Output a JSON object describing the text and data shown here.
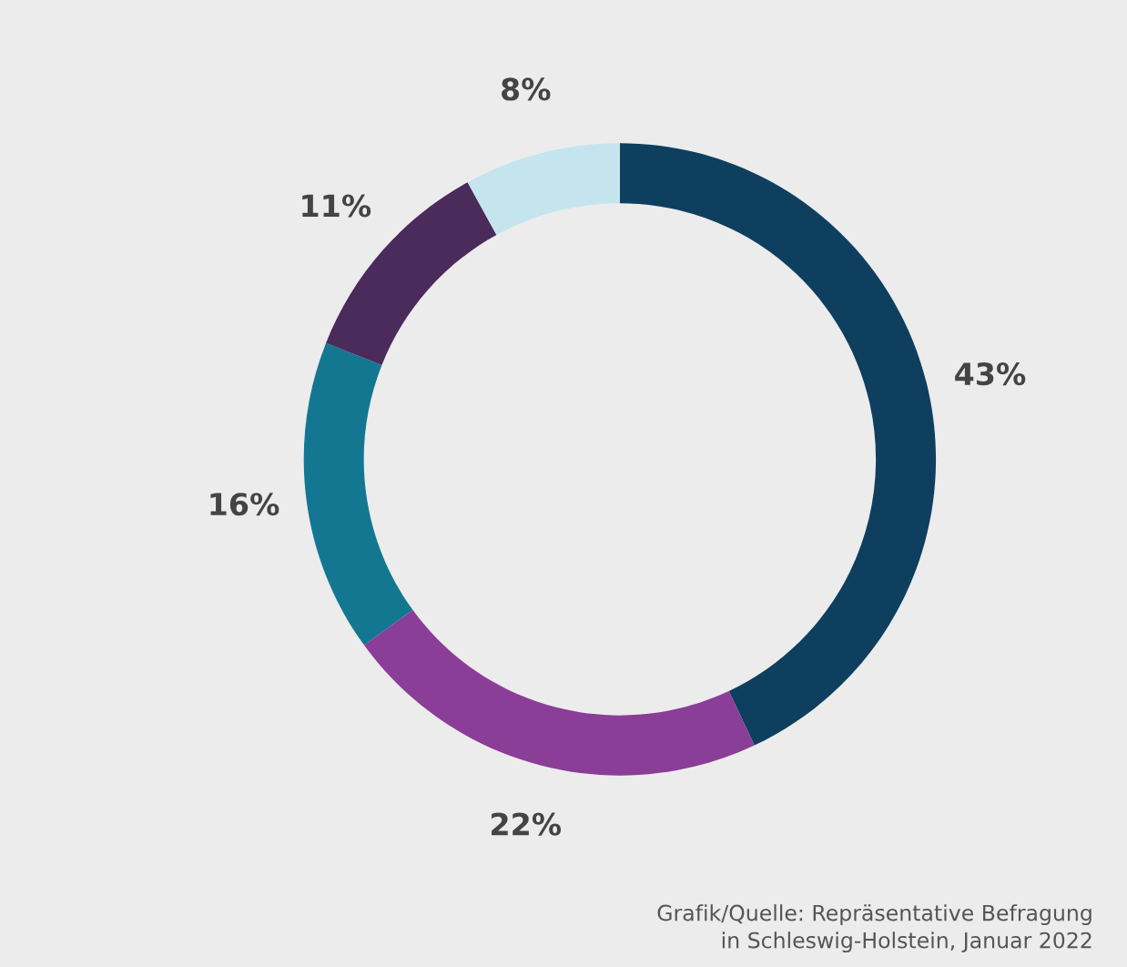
{
  "chart_data": {
    "type": "donut",
    "categories": [
      null,
      null,
      null,
      null,
      null
    ],
    "values": [
      43,
      22,
      16,
      11,
      8
    ],
    "colors": [
      "#0e3f5e",
      "#8a3e97",
      "#137792",
      "#4b2a5c",
      "#c4e4ee"
    ],
    "value_labels": [
      "43%",
      "22%",
      "16%",
      "11%",
      "8%"
    ],
    "annotations": [
      "Grafik/Quelle: Repräsentative Befragung\nin Schleswig-Holstein, Januar 2022"
    ]
  }
}
